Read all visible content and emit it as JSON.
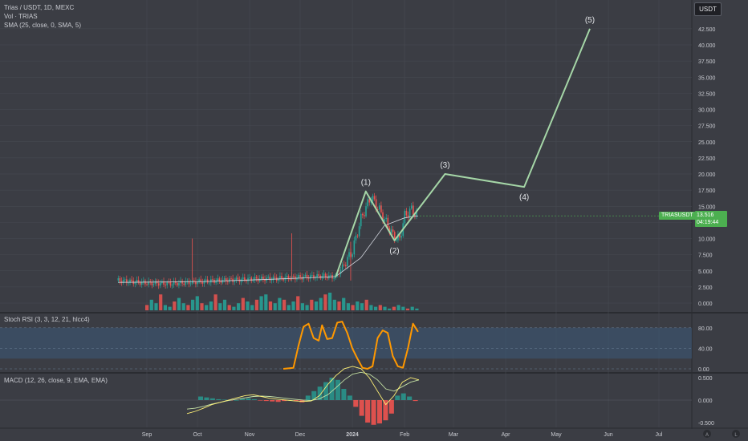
{
  "legend": {
    "title": "Trias / USDT, 1D, MEXC",
    "volume": "Vol · TRIAS",
    "sma": "SMA (25, close, 0, SMA, 5)",
    "stoch": "Stoch RSI (3, 3, 12, 21, hlcc4)",
    "macd": "MACD (12, 26, close, 9, EMA, EMA)"
  },
  "currency_label": "USDT",
  "symbol_tag": "TRIASUSDT",
  "price_tag": {
    "price": "13.516",
    "countdown": "04:19:44"
  },
  "axis_buttons": {
    "auto": "A",
    "log": "L"
  },
  "colors": {
    "background": "#3b3d44",
    "bullish": "#26a69a",
    "bearish": "#ef5350",
    "wave_line": "#a5d6a7",
    "sma": "#d1d4dc",
    "stoch": "#ff9800",
    "stoch_band": "#3d5a7a",
    "macd_line": "#fff176",
    "signal_line": "#c5e1a5",
    "price_badge": "#4caf50"
  },
  "chart_data": [
    {
      "type": "line",
      "title": "Trias / USDT, 1D, MEXC",
      "y_ticks": [
        "0.000",
        "2.500",
        "5.000",
        "7.500",
        "10.000",
        "12.500",
        "15.000",
        "17.500",
        "20.000",
        "22.500",
        "25.000",
        "27.500",
        "30.000",
        "32.500",
        "35.000",
        "37.500",
        "40.000",
        "42.500"
      ],
      "x_ticks": [
        "Sep",
        "Oct",
        "Nov",
        "Dec",
        "2024",
        "Feb",
        "Mar",
        "Apr",
        "May",
        "Jun",
        "Jul"
      ],
      "ylim": [
        -1.5,
        44.5
      ],
      "grid": true,
      "price_series": {
        "name": "TRIASUSDT",
        "x": [
          "2023-08-15",
          "2023-09-01",
          "2023-09-15",
          "2023-10-01",
          "2023-10-15",
          "2023-11-01",
          "2023-11-15",
          "2023-12-01",
          "2023-12-15",
          "2023-12-22",
          "2024-01-01",
          "2024-01-06",
          "2024-01-12",
          "2024-01-18",
          "2024-01-25",
          "2024-01-29",
          "2024-02-01",
          "2024-02-05",
          "2024-02-09"
        ],
        "values": [
          3.5,
          3.1,
          3.0,
          3.3,
          3.5,
          3.7,
          3.8,
          4.0,
          4.2,
          4.0,
          8.0,
          13.0,
          16.5,
          14.0,
          10.5,
          9.8,
          13.5,
          14.5,
          13.5
        ]
      },
      "sma_25": {
        "x": [
          "2023-08-15",
          "2023-10-01",
          "2023-11-15",
          "2023-12-22",
          "2024-01-06",
          "2024-01-20",
          "2024-02-01",
          "2024-02-09"
        ],
        "values": [
          3.2,
          3.3,
          3.7,
          4.1,
          7.0,
          12.0,
          13.2,
          13.5
        ]
      },
      "elliott_wave": {
        "labels": [
          "(1)",
          "(2)",
          "(3)",
          "(4)",
          "(5)"
        ],
        "x": [
          "2023-12-22",
          "2024-01-09",
          "2024-01-26",
          "2024-02-25",
          "2024-04-12",
          "2024-05-21"
        ],
        "values": [
          4.0,
          17.3,
          9.7,
          20.0,
          18.0,
          42.5
        ]
      },
      "volume_bars": [
        0.3,
        0.6,
        0.4,
        0.9,
        0.3,
        0.2,
        0.5,
        0.7,
        0.4,
        0.3,
        0.6,
        0.8,
        0.4,
        0.3,
        0.5,
        0.9,
        0.4,
        0.6,
        0.3,
        0.2,
        0.4,
        0.7,
        0.5,
        0.3,
        0.6,
        0.8,
        0.9,
        0.5,
        0.4,
        0.7,
        0.6,
        0.3,
        0.5,
        0.8,
        0.4,
        0.3,
        0.6,
        0.5,
        0.7,
        0.9,
        1.0,
        0.6,
        0.5,
        0.7,
        0.4,
        0.3,
        0.5,
        0.4,
        0.6,
        0.3,
        0.2,
        0.3,
        0.2,
        0.1,
        0.2,
        0.3,
        0.2,
        0.1,
        0.2,
        0.1
      ]
    },
    {
      "type": "line",
      "title": "Stoch RSI (3, 3, 12, 21, hlcc4)",
      "y_ticks": [
        "0.00",
        "40.00",
        "80.00"
      ],
      "ylim": [
        0,
        100
      ],
      "band": [
        20,
        80
      ],
      "series": {
        "x": [
          "2023-11-21",
          "2023-11-27",
          "2023-11-30",
          "2023-12-03",
          "2023-12-06",
          "2023-12-09",
          "2023-12-12",
          "2023-12-14",
          "2023-12-17",
          "2023-12-20",
          "2023-12-23",
          "2023-12-26",
          "2023-12-29",
          "2024-01-01",
          "2024-01-04",
          "2024-01-07",
          "2024-01-10",
          "2024-01-13",
          "2024-01-16",
          "2024-01-19",
          "2024-01-22",
          "2024-01-25",
          "2024-01-28",
          "2024-01-31",
          "2024-02-03",
          "2024-02-06",
          "2024-02-09"
        ],
        "values": [
          0,
          2,
          45,
          82,
          88,
          60,
          55,
          85,
          58,
          60,
          90,
          92,
          70,
          40,
          20,
          2,
          0,
          5,
          60,
          75,
          70,
          25,
          5,
          2,
          40,
          88,
          72
        ]
      }
    },
    {
      "type": "bar",
      "title": "MACD (12, 26, close, 9, EMA, EMA)",
      "y_ticks": [
        "-0.500",
        "0.000",
        "0.500"
      ],
      "ylim": [
        -0.65,
        0.55
      ],
      "histogram": [
        0.08,
        0.06,
        0.04,
        0.02,
        0.01,
        -0.01,
        0.0,
        0.03,
        0.04,
        0.02,
        -0.01,
        -0.02,
        -0.03,
        -0.04,
        -0.02,
        0.0,
        -0.02,
        -0.05,
        0.1,
        0.2,
        0.3,
        0.4,
        0.5,
        0.45,
        0.25,
        0.1,
        -0.15,
        -0.35,
        -0.5,
        -0.55,
        -0.52,
        -0.45,
        -0.3,
        0.1,
        0.15,
        0.08,
        -0.02
      ],
      "macd_line": [
        -0.3,
        -0.25,
        -0.18,
        -0.1,
        -0.05,
        0.0,
        0.05,
        0.1,
        0.12,
        0.08,
        0.04,
        0.02,
        0.0,
        -0.02,
        -0.03,
        -0.02,
        0.1,
        0.35,
        0.55,
        0.7,
        0.75,
        0.7,
        0.5,
        0.2,
        -0.1,
        0.1,
        0.4,
        0.5,
        0.45
      ],
      "signal_line": [
        -0.2,
        -0.18,
        -0.14,
        -0.09,
        -0.05,
        -0.01,
        0.02,
        0.05,
        0.08,
        0.09,
        0.08,
        0.06,
        0.04,
        0.02,
        0.0,
        -0.01,
        0.03,
        0.12,
        0.28,
        0.45,
        0.58,
        0.62,
        0.58,
        0.45,
        0.25,
        0.2,
        0.3,
        0.4,
        0.45
      ]
    }
  ]
}
